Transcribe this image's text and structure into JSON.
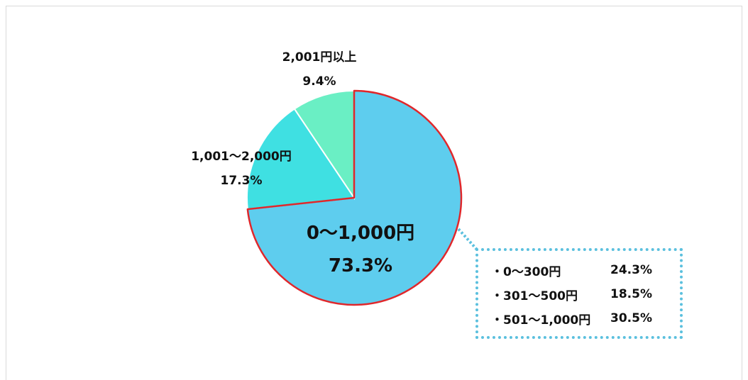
{
  "chart_data": {
    "type": "pie",
    "title": "",
    "slices": [
      {
        "label": "0〜1,000円",
        "value": 73.3,
        "display": "73.3%",
        "color": "#5ecdee",
        "highlight": true
      },
      {
        "label": "1,001〜2,000円",
        "value": 17.3,
        "display": "17.3%",
        "color": "#3fe0e2"
      },
      {
        "label": "2,001円以上",
        "value": 9.4,
        "display": "9.4%",
        "color": "#6aefc4"
      }
    ],
    "breakdown": [
      {
        "label": "・0〜300円",
        "value": "24.3%"
      },
      {
        "label": "・301〜500円",
        "value": "18.5%"
      },
      {
        "label": "・501〜1,000円",
        "value": "30.5%"
      }
    ],
    "highlight_color": "#e0272b",
    "callout_color": "#5bc0de",
    "start_angle_deg": 0,
    "direction": "clockwise"
  }
}
